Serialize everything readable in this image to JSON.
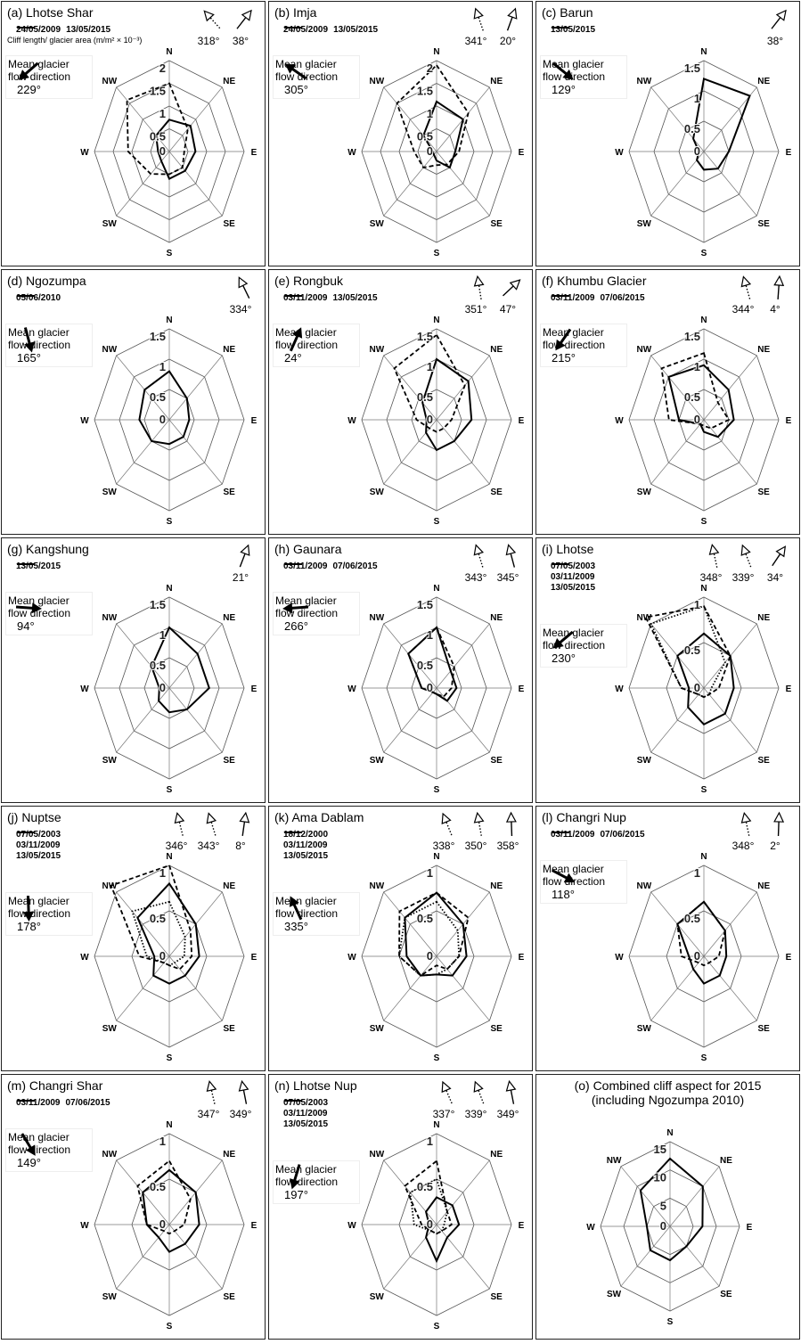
{
  "chart_data": [
    {
      "type": "radar",
      "title": "(a) Lhotse Shar",
      "categories": [
        "N",
        "NE",
        "E",
        "SE",
        "S",
        "SW",
        "W",
        "NW"
      ],
      "rlim": [
        0,
        2
      ],
      "rticks": [
        0,
        0.5,
        1,
        1.5,
        2
      ],
      "axis_label": "Cliff length/ glacier area (m/m² × 10⁻³)",
      "series": [
        {
          "name": "24/05/2009",
          "color": "#000000",
          "dash": "dashed",
          "values": [
            1.5,
            0.7,
            0.4,
            0.5,
            0.5,
            0.7,
            1.1,
            1.6
          ]
        },
        {
          "name": "13/05/2015",
          "color": "#000000",
          "dash": "solid",
          "values": [
            0.7,
            0.8,
            0.7,
            0.6,
            0.6,
            0.3,
            0.3,
            0.5
          ]
        }
      ],
      "aspect_arrows": [
        {
          "value": 318,
          "label": "318°",
          "dash": "dotted"
        },
        {
          "value": 38,
          "label": "38°",
          "dash": "solid"
        }
      ],
      "flow_label": "Mean glacier flow direction",
      "flow_direction": {
        "value": 229,
        "label": "229°"
      }
    },
    {
      "type": "radar",
      "title": "(b) Imja",
      "categories": [
        "N",
        "NE",
        "E",
        "SE",
        "S",
        "SW",
        "W",
        "NW"
      ],
      "rlim": [
        0,
        2
      ],
      "rticks": [
        0,
        0.5,
        1,
        1.5,
        2
      ],
      "series": [
        {
          "name": "24/05/2009",
          "color": "#000000",
          "dash": "dashed",
          "values": [
            1.9,
            1.2,
            0.6,
            0.4,
            0.3,
            0.5,
            0.6,
            1.5
          ]
        },
        {
          "name": "13/05/2015",
          "color": "#000000",
          "dash": "solid",
          "values": [
            1.1,
            1.0,
            0.5,
            0.5,
            0.2,
            0.1,
            0.1,
            0.5
          ]
        }
      ],
      "aspect_arrows": [
        {
          "value": 341,
          "label": "341°",
          "dash": "dotted"
        },
        {
          "value": 20,
          "label": "20°",
          "dash": "solid"
        }
      ],
      "flow_label": "Mean glacier flow direction",
      "flow_direction": {
        "value": 305,
        "label": "305°"
      }
    },
    {
      "type": "radar",
      "title": "(c) Barun",
      "categories": [
        "N",
        "NE",
        "E",
        "SE",
        "S",
        "SW",
        "W",
        "NW"
      ],
      "rlim": [
        0,
        1.5
      ],
      "rticks": [
        0,
        0.5,
        1,
        1.5
      ],
      "series": [
        {
          "name": "13/05/2015",
          "color": "#000000",
          "dash": "solid",
          "values": [
            1.2,
            1.3,
            0.5,
            0.4,
            0.3,
            0.2,
            0.1,
            0.3
          ]
        }
      ],
      "aspect_arrows": [
        {
          "value": 38,
          "label": "38°",
          "dash": "solid"
        }
      ],
      "flow_label": "Mean glacier flow direction",
      "flow_direction": {
        "value": 129,
        "label": "129°"
      }
    },
    {
      "type": "radar",
      "title": "(d) Ngozumpa",
      "categories": [
        "N",
        "NE",
        "E",
        "SE",
        "S",
        "SW",
        "W",
        "NW"
      ],
      "rlim": [
        0,
        1.5
      ],
      "rticks": [
        0,
        0.5,
        1,
        1.5
      ],
      "series": [
        {
          "name": "05/06/2010",
          "color": "#000000",
          "dash": "solid",
          "values": [
            0.8,
            0.5,
            0.4,
            0.4,
            0.4,
            0.5,
            0.6,
            0.7
          ]
        }
      ],
      "aspect_arrows": [
        {
          "value": 334,
          "label": "334°",
          "dash": "solid"
        }
      ],
      "flow_label": "Mean glacier flow direction",
      "flow_direction": {
        "value": 165,
        "label": "165°"
      }
    },
    {
      "type": "radar",
      "title": "(e) Rongbuk",
      "categories": [
        "N",
        "NE",
        "E",
        "SE",
        "S",
        "SW",
        "W",
        "NW"
      ],
      "rlim": [
        0,
        1.5
      ],
      "rticks": [
        0,
        0.5,
        1,
        1.5
      ],
      "series": [
        {
          "name": "03/11/2009",
          "color": "#000000",
          "dash": "dashed",
          "values": [
            1.4,
            0.8,
            0.3,
            0.2,
            0.2,
            0.2,
            0.4,
            1.2
          ]
        },
        {
          "name": "13/05/2015",
          "color": "#000000",
          "dash": "solid",
          "values": [
            1.0,
            0.9,
            0.7,
            0.5,
            0.5,
            0.3,
            0.2,
            0.4
          ]
        }
      ],
      "aspect_arrows": [
        {
          "value": 351,
          "label": "351°",
          "dash": "dotted"
        },
        {
          "value": 47,
          "label": "47°",
          "dash": "solid"
        }
      ],
      "flow_label": "Mean glacier flow direction",
      "flow_direction": {
        "value": 24,
        "label": "24°"
      }
    },
    {
      "type": "radar",
      "title": "(f) Khumbu Glacier",
      "categories": [
        "N",
        "NE",
        "E",
        "SE",
        "S",
        "SW",
        "W",
        "NW"
      ],
      "rlim": [
        0,
        1.5
      ],
      "rticks": [
        0,
        0.5,
        1,
        1.5
      ],
      "series": [
        {
          "name": "03/11/2009",
          "color": "#000000",
          "dash": "dashed",
          "values": [
            1.1,
            0.4,
            0.5,
            0.2,
            0.1,
            0.1,
            0.7,
            1.2
          ]
        },
        {
          "name": "07/06/2015",
          "color": "#000000",
          "dash": "solid",
          "values": [
            0.9,
            0.7,
            0.6,
            0.4,
            0.2,
            0.1,
            0.5,
            1.0
          ]
        }
      ],
      "aspect_arrows": [
        {
          "value": 344,
          "label": "344°",
          "dash": "dotted"
        },
        {
          "value": 4,
          "label": "4°",
          "dash": "solid"
        }
      ],
      "flow_label": "Mean glacier flow direction",
      "flow_direction": {
        "value": 215,
        "label": "215°"
      }
    },
    {
      "type": "radar",
      "title": "(g) Kangshung",
      "categories": [
        "N",
        "NE",
        "E",
        "SE",
        "S",
        "SW",
        "W",
        "NW"
      ],
      "rlim": [
        0,
        1.5
      ],
      "rticks": [
        0,
        0.5,
        1,
        1.5
      ],
      "series": [
        {
          "name": "13/05/2015",
          "color": "#000000",
          "dash": "solid",
          "values": [
            1.0,
            0.8,
            0.8,
            0.5,
            0.4,
            0.3,
            0.2,
            0.5
          ]
        }
      ],
      "aspect_arrows": [
        {
          "value": 21,
          "label": "21°",
          "dash": "solid"
        }
      ],
      "flow_label": "Mean glacier flow direction",
      "flow_direction": {
        "value": 94,
        "label": "94°"
      }
    },
    {
      "type": "radar",
      "title": "(h) Gaunara",
      "categories": [
        "N",
        "NE",
        "E",
        "SE",
        "S",
        "SW",
        "W",
        "NW"
      ],
      "rlim": [
        0,
        1.5
      ],
      "rticks": [
        0,
        0.5,
        1,
        1.5
      ],
      "series": [
        {
          "name": "03/11/2009",
          "color": "#000000",
          "dash": "dashed",
          "values": [
            1.0,
            0.5,
            0.3,
            0.2,
            0.1,
            0.1,
            0.3,
            0.8
          ]
        },
        {
          "name": "07/06/2015",
          "color": "#000000",
          "dash": "solid",
          "values": [
            1.0,
            0.4,
            0.4,
            0.3,
            0.1,
            0.1,
            0.3,
            0.8
          ]
        }
      ],
      "aspect_arrows": [
        {
          "value": 343,
          "label": "343°",
          "dash": "dotted"
        },
        {
          "value": 345,
          "label": "345°",
          "dash": "solid"
        }
      ],
      "flow_label": "Mean glacier flow direction",
      "flow_direction": {
        "value": 266,
        "label": "266°"
      }
    },
    {
      "type": "radar",
      "title": "(i) Lhotse",
      "categories": [
        "N",
        "NE",
        "E",
        "SE",
        "S",
        "SW",
        "W",
        "NW"
      ],
      "rlim": [
        0,
        1
      ],
      "rticks": [
        0,
        0.5,
        1
      ],
      "series": [
        {
          "name": "07/05/2003",
          "color": "#000000",
          "dash": "dotted",
          "values": [
            0.9,
            0.4,
            0.1,
            0.1,
            0.1,
            0.1,
            0.3,
            1.0
          ]
        },
        {
          "name": "03/11/2009",
          "color": "#000000",
          "dash": "dashed",
          "values": [
            0.9,
            0.5,
            0.2,
            0.1,
            0.1,
            0.1,
            0.3,
            1.1
          ]
        },
        {
          "name": "13/05/2015",
          "color": "#000000",
          "dash": "solid",
          "values": [
            0.6,
            0.5,
            0.4,
            0.4,
            0.4,
            0.3,
            0.2,
            0.5
          ]
        }
      ],
      "aspect_arrows": [
        {
          "value": 348,
          "label": "348°",
          "dash": "dotted"
        },
        {
          "value": 339,
          "label": "339°",
          "dash": "dotted"
        },
        {
          "value": 34,
          "label": "34°",
          "dash": "solid"
        }
      ],
      "flow_label": "Mean glacier flow direction",
      "flow_direction": {
        "value": 230,
        "label": "230°"
      }
    },
    {
      "type": "radar",
      "title": "(j) Nuptse",
      "categories": [
        "N",
        "NE",
        "E",
        "SE",
        "S",
        "SW",
        "W",
        "NW"
      ],
      "rlim": [
        0,
        1
      ],
      "rticks": [
        0,
        0.5,
        1
      ],
      "series": [
        {
          "name": "07/05/2003",
          "color": "#000000",
          "dash": "dotted",
          "values": [
            0.6,
            0.3,
            0.2,
            0.1,
            0.1,
            0.1,
            0.3,
            0.7
          ]
        },
        {
          "name": "03/11/2009",
          "color": "#000000",
          "dash": "dashed",
          "values": [
            1.0,
            0.4,
            0.3,
            0.2,
            0.1,
            0.1,
            0.4,
            1.1
          ]
        },
        {
          "name": "13/05/2015",
          "color": "#000000",
          "dash": "solid",
          "values": [
            0.8,
            0.5,
            0.4,
            0.3,
            0.3,
            0.3,
            0.2,
            0.6
          ]
        }
      ],
      "aspect_arrows": [
        {
          "value": 346,
          "label": "346°",
          "dash": "dotted"
        },
        {
          "value": 343,
          "label": "343°",
          "dash": "dotted"
        },
        {
          "value": 8,
          "label": "8°",
          "dash": "solid"
        }
      ],
      "flow_label": "Mean glacier flow direction",
      "flow_direction": {
        "value": 178,
        "label": "178°"
      }
    },
    {
      "type": "radar",
      "title": "(k) Ama Dablam",
      "categories": [
        "N",
        "NE",
        "E",
        "SE",
        "S",
        "SW",
        "W",
        "NW"
      ],
      "rlim": [
        0,
        1
      ],
      "rticks": [
        0,
        0.5,
        1
      ],
      "series": [
        {
          "name": "18/12/2000",
          "color": "#000000",
          "dash": "dotted",
          "values": [
            0.6,
            0.4,
            0.3,
            0.2,
            0.2,
            0.3,
            0.5,
            0.6
          ]
        },
        {
          "name": "03/11/2009",
          "color": "#000000",
          "dash": "dashed",
          "values": [
            0.7,
            0.6,
            0.3,
            0.2,
            0.1,
            0.3,
            0.5,
            0.7
          ]
        },
        {
          "name": "13/05/2015",
          "color": "#000000",
          "dash": "solid",
          "values": [
            0.7,
            0.5,
            0.4,
            0.3,
            0.2,
            0.3,
            0.4,
            0.6
          ]
        }
      ],
      "aspect_arrows": [
        {
          "value": 338,
          "label": "338°",
          "dash": "dotted"
        },
        {
          "value": 350,
          "label": "350°",
          "dash": "dotted"
        },
        {
          "value": 358,
          "label": "358°",
          "dash": "solid"
        }
      ],
      "flow_label": "Mean glacier flow direction",
      "flow_direction": {
        "value": 335,
        "label": "335°"
      }
    },
    {
      "type": "radar",
      "title": "(l) Changri Nup",
      "categories": [
        "N",
        "NE",
        "E",
        "SE",
        "S",
        "SW",
        "W",
        "NW"
      ],
      "rlim": [
        0,
        1
      ],
      "rticks": [
        0,
        0.5,
        1
      ],
      "series": [
        {
          "name": "03/11/2009",
          "color": "#000000",
          "dash": "dashed",
          "values": [
            0.6,
            0.4,
            0.2,
            0.1,
            0.1,
            0.1,
            0.3,
            0.5
          ]
        },
        {
          "name": "07/06/2015",
          "color": "#000000",
          "dash": "solid",
          "values": [
            0.6,
            0.4,
            0.3,
            0.3,
            0.3,
            0.2,
            0.2,
            0.5
          ]
        }
      ],
      "aspect_arrows": [
        {
          "value": 348,
          "label": "348°",
          "dash": "dotted"
        },
        {
          "value": 2,
          "label": "2°",
          "dash": "solid"
        }
      ],
      "flow_label": "Mean glacier flow direction",
      "flow_direction": {
        "value": 118,
        "label": "118°"
      }
    },
    {
      "type": "radar",
      "title": "(m) Changri Shar",
      "categories": [
        "N",
        "NE",
        "E",
        "SE",
        "S",
        "SW",
        "W",
        "NW"
      ],
      "rlim": [
        0,
        1
      ],
      "rticks": [
        0,
        0.5,
        1
      ],
      "series": [
        {
          "name": "03/11/2009",
          "color": "#000000",
          "dash": "dashed",
          "values": [
            0.7,
            0.4,
            0.2,
            0.1,
            0.1,
            0.1,
            0.3,
            0.6
          ]
        },
        {
          "name": "07/06/2015",
          "color": "#000000",
          "dash": "solid",
          "values": [
            0.6,
            0.5,
            0.4,
            0.3,
            0.3,
            0.2,
            0.3,
            0.5
          ]
        }
      ],
      "aspect_arrows": [
        {
          "value": 347,
          "label": "347°",
          "dash": "dotted"
        },
        {
          "value": 349,
          "label": "349°",
          "dash": "solid"
        }
      ],
      "flow_label": "Mean glacier flow direction",
      "flow_direction": {
        "value": 149,
        "label": "149°"
      }
    },
    {
      "type": "radar",
      "title": "(n) Lhotse Nup",
      "categories": [
        "N",
        "NE",
        "E",
        "SE",
        "S",
        "SW",
        "W",
        "NW"
      ],
      "rlim": [
        0,
        1
      ],
      "rticks": [
        0,
        0.5,
        1
      ],
      "series": [
        {
          "name": "07/05/2003",
          "color": "#000000",
          "dash": "dotted",
          "values": [
            0.5,
            0.2,
            0.1,
            0.1,
            0.1,
            0.1,
            0.3,
            0.5
          ]
        },
        {
          "name": "03/11/2009",
          "color": "#000000",
          "dash": "dashed",
          "values": [
            0.7,
            0.2,
            0.2,
            0.1,
            0.1,
            0.1,
            0.2,
            0.6
          ]
        },
        {
          "name": "13/05/2015",
          "color": "#000000",
          "dash": "solid",
          "values": [
            0.3,
            0.3,
            0.3,
            0.2,
            0.4,
            0.2,
            0.1,
            0.2
          ]
        }
      ],
      "aspect_arrows": [
        {
          "value": 337,
          "label": "337°",
          "dash": "dotted"
        },
        {
          "value": 339,
          "label": "339°",
          "dash": "dotted"
        },
        {
          "value": 349,
          "label": "349°",
          "dash": "solid"
        }
      ],
      "flow_label": "Mean glacier flow direction",
      "flow_direction": {
        "value": 197,
        "label": "197°"
      }
    },
    {
      "type": "radar",
      "title": "(o) Combined cliff aspect for 2015",
      "subtitle": "(including Ngozumpa 2010)",
      "categories": [
        "N",
        "NE",
        "E",
        "SE",
        "S",
        "SW",
        "W",
        "NW"
      ],
      "rlim": [
        0,
        15
      ],
      "rticks": [
        0,
        5,
        10,
        15
      ],
      "series": [
        {
          "color": "#000000",
          "dash": "solid",
          "values": [
            12,
            10,
            7,
            5,
            6,
            6,
            5,
            9
          ]
        }
      ]
    }
  ]
}
